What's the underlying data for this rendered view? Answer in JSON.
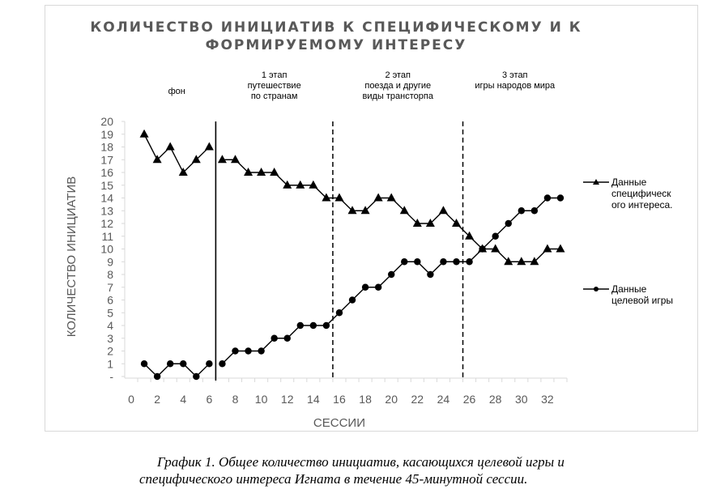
{
  "chart_data": {
    "type": "line",
    "title_lines": [
      "КОЛИЧЕСТВО ИНИЦИАТИВ К СПЕЦИФИЧЕСКОМУ И К",
      "ФОРМИРУЕМОМУ ИНТЕРЕСУ"
    ],
    "xlabel": "СЕССИИ",
    "ylabel": "КОЛИЧЕСТВО ИНИЦИАТИВ",
    "xlim": [
      0,
      33.5
    ],
    "ylim": [
      0,
      20
    ],
    "x_ticks": [
      "0",
      "2",
      "4",
      "6",
      "8",
      "10",
      "12",
      "14",
      "16",
      "18",
      "20",
      "22",
      "24",
      "26",
      "28",
      "30",
      "32"
    ],
    "y_ticks": [
      "-",
      "1",
      "2",
      "3",
      "4",
      "5",
      "6",
      "7",
      "8",
      "9",
      "10",
      "11",
      "12",
      "13",
      "14",
      "15",
      "16",
      "17",
      "18",
      "19",
      "20"
    ],
    "x": [
      1,
      2,
      3,
      4,
      5,
      6,
      7,
      8,
      9,
      10,
      11,
      12,
      13,
      14,
      15,
      16,
      17,
      18,
      19,
      20,
      21,
      22,
      23,
      24,
      25,
      26,
      27,
      28,
      29,
      30,
      31,
      32,
      33
    ],
    "series": [
      {
        "name": "Данные специфического интереса.",
        "legend_lines": [
          "Данные",
          "специфическ",
          "ого интереса."
        ],
        "marker": "triangle",
        "values": [
          19,
          17,
          18,
          16,
          17,
          18,
          17,
          17,
          16,
          16,
          16,
          15,
          15,
          15,
          14,
          14,
          13,
          13,
          14,
          14,
          13,
          12,
          12,
          13,
          12,
          11,
          10,
          10,
          9,
          9,
          9,
          10,
          10
        ]
      },
      {
        "name": "Данные целевой игры",
        "legend_lines": [
          "Данные",
          "целевой игры"
        ],
        "marker": "circle",
        "values": [
          1,
          0,
          1,
          1,
          0,
          1,
          1,
          2,
          2,
          2,
          3,
          3,
          4,
          4,
          4,
          5,
          6,
          7,
          7,
          8,
          9,
          9,
          8,
          9,
          9,
          9,
          10,
          11,
          12,
          13,
          13,
          14,
          14
        ]
      }
    ],
    "phase_boundaries": [
      {
        "x": 6.5,
        "style": "solid"
      },
      {
        "x": 15.5,
        "style": "dashed"
      },
      {
        "x": 25.5,
        "style": "dashed"
      }
    ],
    "phases": [
      {
        "center": 3.5,
        "lines": [
          "фон"
        ]
      },
      {
        "center": 11,
        "lines": [
          "1 этап",
          "путешествие",
          "по странам"
        ]
      },
      {
        "center": 20.5,
        "lines": [
          "2 этап",
          "поезда и другие",
          "виды трансторпа"
        ]
      },
      {
        "center": 29.5,
        "lines": [
          "3 этап",
          "игры народов мира"
        ]
      }
    ],
    "legend_placement": "right"
  },
  "caption": [
    "График 1. Общее количество инициатив, касающихся целевой игры и",
    "специфического интереса Игната в течение 45-минутной сессии."
  ]
}
